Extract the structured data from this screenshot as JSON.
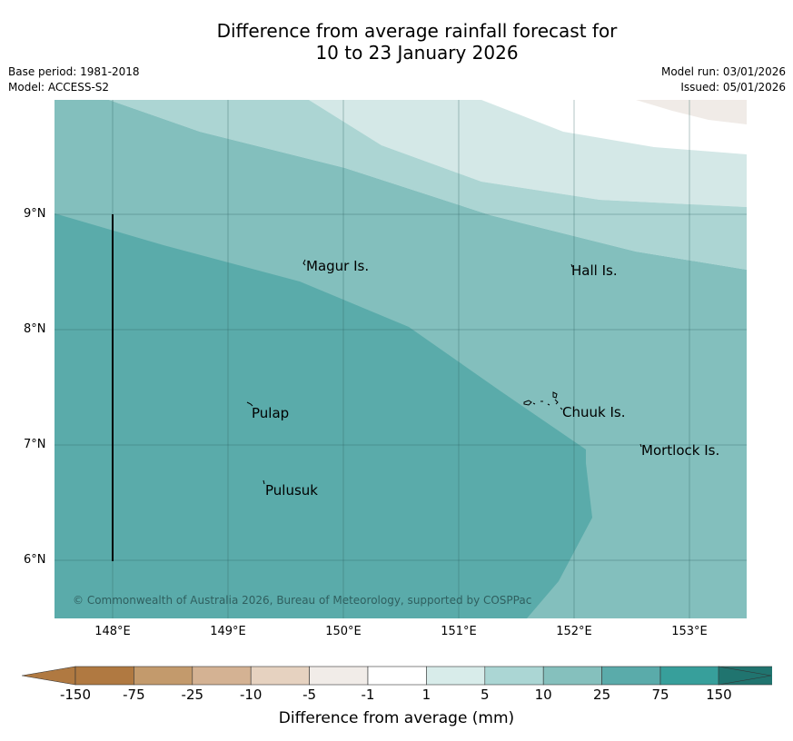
{
  "title": {
    "line1": "Difference from average rainfall forecast for",
    "line2": "10 to 23 January 2026"
  },
  "meta": {
    "base_period": "Base period: 1981-2018",
    "model": "Model: ACCESS-S2",
    "model_run": "Model run: 03/01/2026",
    "issued": "Issued: 05/01/2026"
  },
  "map": {
    "lat_labels": [
      "9°N",
      "8°N",
      "7°N",
      "6°N"
    ],
    "lon_labels": [
      "148°E",
      "149°E",
      "150°E",
      "151°E",
      "152°E",
      "153°E"
    ],
    "places": [
      "Magur Is.",
      "Hall Is.",
      "Pulap",
      "Chuuk Is.",
      "Mortlock Is.",
      "Pulusuk"
    ],
    "copyright": "© Commonwealth of Australia 2026, Bureau of Meteorology, supported by COSPPac",
    "colors": {
      "band_5_10": "#d4e8e7",
      "band_10_25": "#acd5d3",
      "band_25_75": "#83bfbd",
      "band_75_150": "#5aabaa",
      "band_neg1_neg5": "#f0ebe7"
    }
  },
  "legend": {
    "title": "Difference from average (mm)",
    "ticks": [
      "-150",
      "-75",
      "-25",
      "-10",
      "-5",
      "-1",
      "1",
      "5",
      "10",
      "25",
      "75",
      "150"
    ],
    "colors": [
      "#b07941",
      "#c39a6c",
      "#d4b293",
      "#e6d2c0",
      "#f1ece8",
      "#ffffff",
      "#d8ecea",
      "#abd6d4",
      "#85c0bd",
      "#5aabaa",
      "#379f9b",
      "#20746f"
    ]
  }
}
